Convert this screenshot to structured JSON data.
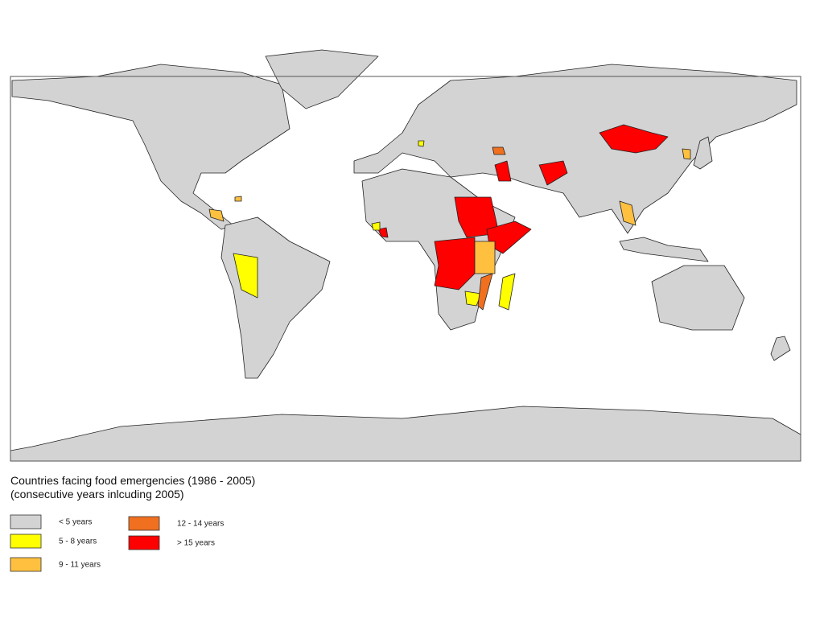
{
  "legend": {
    "title": [
      "Countries facing food emergencies (1986 - 2005)",
      "(consecutive years inlcuding 2005)"
    ],
    "items": [
      {
        "label": "< 5 years",
        "color": "#d3d3d3"
      },
      {
        "label": "5 - 8 years",
        "color": "#ffff00"
      },
      {
        "label": "9 - 11 years",
        "color": "#ffc040"
      },
      {
        "label": "12 - 14 years",
        "color": "#f07020"
      },
      {
        "label": "> 15 years",
        "color": "#ff0000"
      }
    ]
  }
}
